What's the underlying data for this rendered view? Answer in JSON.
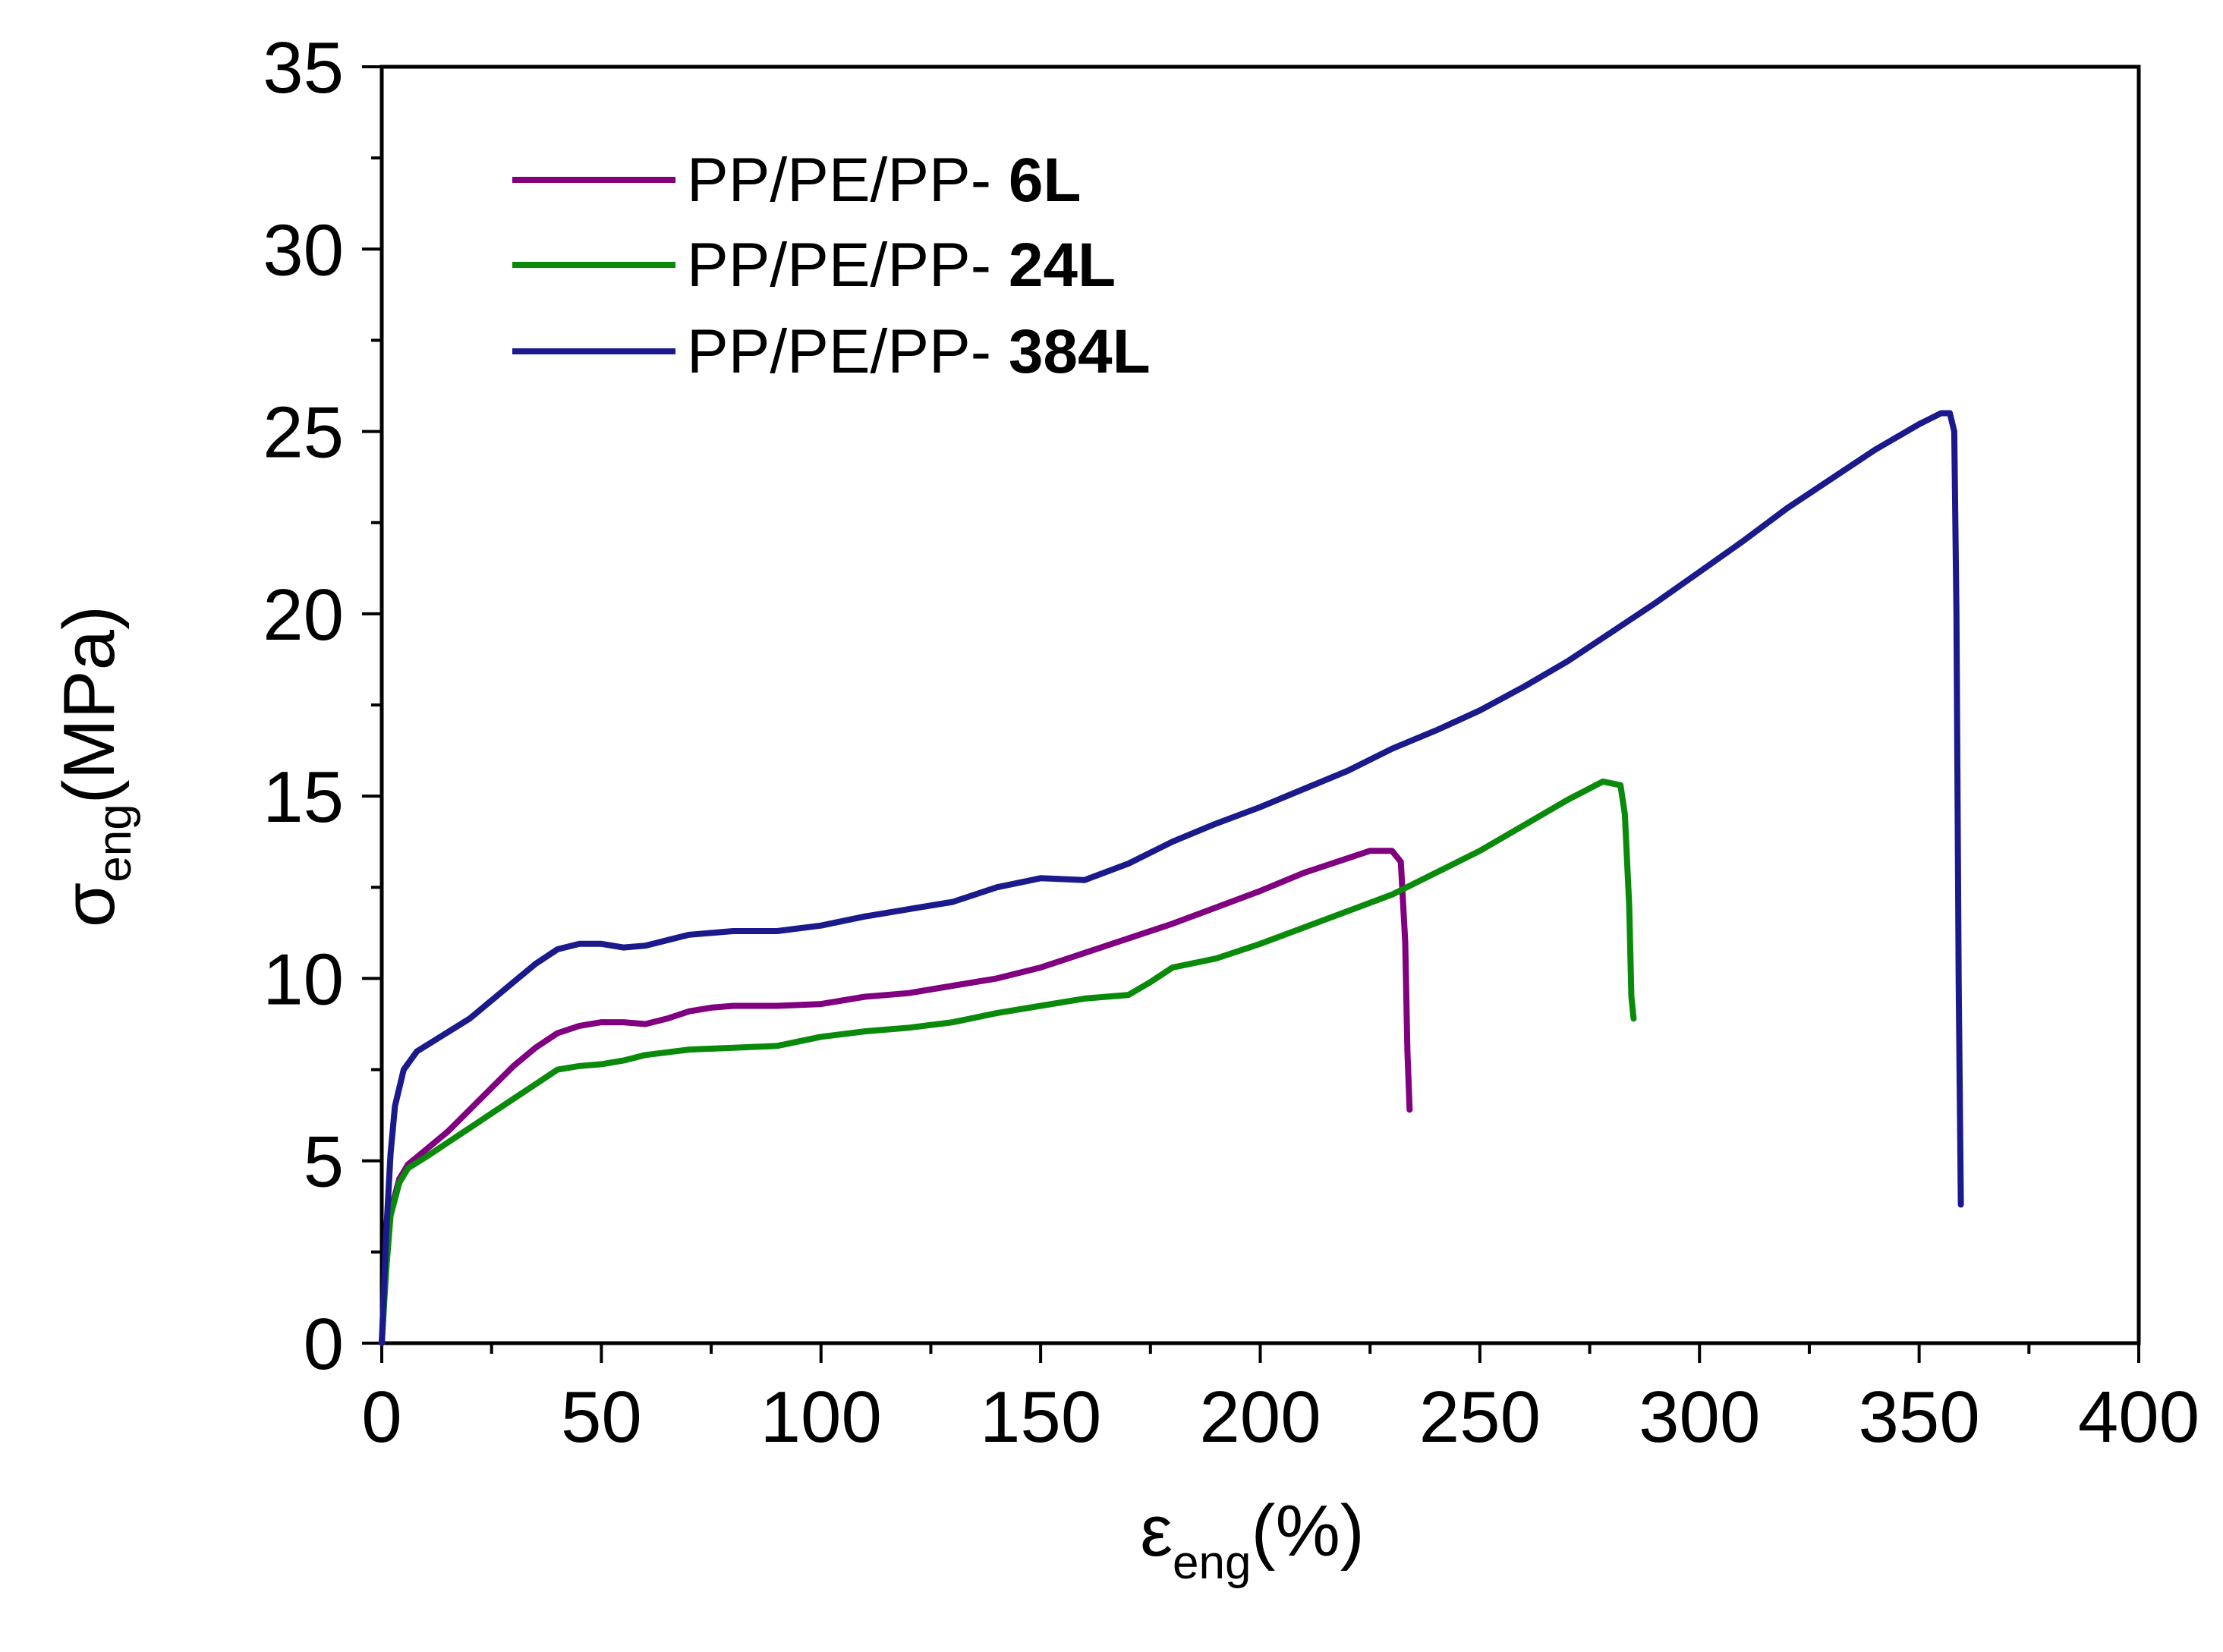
{
  "chart_data": {
    "type": "line",
    "title": "",
    "xlabel": {
      "symbol": "ε",
      "subscript": "eng",
      "unit": "(%)"
    },
    "ylabel": {
      "symbol": "σ",
      "subscript": "eng",
      "unit": "(MPa)"
    },
    "xlim": [
      0,
      400
    ],
    "ylim": [
      0,
      35
    ],
    "xticks": [
      0,
      50,
      100,
      150,
      200,
      250,
      300,
      350,
      400
    ],
    "yticks": [
      0,
      5,
      10,
      15,
      20,
      25,
      30,
      35
    ],
    "xminor_step": 25,
    "yminor_step": 2.5,
    "grid": false,
    "legend_position": "top-left",
    "series": [
      {
        "name_prefix": "PP/PE/PP- ",
        "name_suffix": "6L",
        "color": "#800080",
        "points": [
          [
            0,
            0
          ],
          [
            1,
            2.2
          ],
          [
            2,
            3.6
          ],
          [
            4,
            4.5
          ],
          [
            6,
            4.9
          ],
          [
            10,
            5.3
          ],
          [
            15,
            5.8
          ],
          [
            20,
            6.4
          ],
          [
            25,
            7.0
          ],
          [
            30,
            7.6
          ],
          [
            35,
            8.1
          ],
          [
            40,
            8.5
          ],
          [
            45,
            8.7
          ],
          [
            50,
            8.8
          ],
          [
            55,
            8.8
          ],
          [
            60,
            8.75
          ],
          [
            65,
            8.9
          ],
          [
            70,
            9.1
          ],
          [
            75,
            9.2
          ],
          [
            80,
            9.25
          ],
          [
            90,
            9.25
          ],
          [
            100,
            9.3
          ],
          [
            110,
            9.5
          ],
          [
            120,
            9.6
          ],
          [
            130,
            9.8
          ],
          [
            140,
            10.0
          ],
          [
            150,
            10.3
          ],
          [
            160,
            10.7
          ],
          [
            170,
            11.1
          ],
          [
            180,
            11.5
          ],
          [
            190,
            11.95
          ],
          [
            200,
            12.4
          ],
          [
            210,
            12.9
          ],
          [
            220,
            13.3
          ],
          [
            225,
            13.5
          ],
          [
            230,
            13.5
          ],
          [
            232,
            13.2
          ],
          [
            233,
            11.0
          ],
          [
            233.5,
            8.0
          ],
          [
            234,
            6.4
          ]
        ]
      },
      {
        "name_prefix": "PP/PE/PP- ",
        "name_suffix": "24L",
        "color": "#0a8a0a",
        "points": [
          [
            0,
            0
          ],
          [
            1,
            2.0
          ],
          [
            2,
            3.5
          ],
          [
            4,
            4.4
          ],
          [
            6,
            4.8
          ],
          [
            10,
            5.1
          ],
          [
            15,
            5.5
          ],
          [
            20,
            5.9
          ],
          [
            25,
            6.3
          ],
          [
            30,
            6.7
          ],
          [
            35,
            7.1
          ],
          [
            40,
            7.5
          ],
          [
            45,
            7.6
          ],
          [
            50,
            7.65
          ],
          [
            55,
            7.75
          ],
          [
            60,
            7.9
          ],
          [
            70,
            8.05
          ],
          [
            80,
            8.1
          ],
          [
            90,
            8.15
          ],
          [
            100,
            8.4
          ],
          [
            110,
            8.55
          ],
          [
            120,
            8.65
          ],
          [
            130,
            8.8
          ],
          [
            140,
            9.05
          ],
          [
            150,
            9.25
          ],
          [
            160,
            9.45
          ],
          [
            165,
            9.5
          ],
          [
            170,
            9.55
          ],
          [
            175,
            9.9
          ],
          [
            180,
            10.3
          ],
          [
            190,
            10.55
          ],
          [
            200,
            10.95
          ],
          [
            210,
            11.4
          ],
          [
            220,
            11.85
          ],
          [
            230,
            12.3
          ],
          [
            240,
            12.9
          ],
          [
            250,
            13.5
          ],
          [
            260,
            14.2
          ],
          [
            270,
            14.9
          ],
          [
            278,
            15.4
          ],
          [
            282,
            15.3
          ],
          [
            283,
            14.5
          ],
          [
            284,
            12.0
          ],
          [
            284.5,
            9.5
          ],
          [
            285,
            8.9
          ]
        ]
      },
      {
        "name_prefix": "PP/PE/PP- ",
        "name_suffix": "384L",
        "color": "#1a1a8c",
        "points": [
          [
            0,
            0
          ],
          [
            1,
            3.0
          ],
          [
            2,
            5.2
          ],
          [
            3,
            6.5
          ],
          [
            5,
            7.5
          ],
          [
            8,
            8.0
          ],
          [
            12,
            8.3
          ],
          [
            20,
            8.9
          ],
          [
            25,
            9.4
          ],
          [
            30,
            9.9
          ],
          [
            35,
            10.4
          ],
          [
            40,
            10.8
          ],
          [
            45,
            10.95
          ],
          [
            50,
            10.95
          ],
          [
            55,
            10.85
          ],
          [
            60,
            10.9
          ],
          [
            70,
            11.2
          ],
          [
            80,
            11.3
          ],
          [
            90,
            11.3
          ],
          [
            100,
            11.45
          ],
          [
            110,
            11.7
          ],
          [
            120,
            11.9
          ],
          [
            130,
            12.1
          ],
          [
            140,
            12.5
          ],
          [
            150,
            12.75
          ],
          [
            160,
            12.7
          ],
          [
            170,
            13.15
          ],
          [
            180,
            13.75
          ],
          [
            190,
            14.25
          ],
          [
            200,
            14.7
          ],
          [
            210,
            15.2
          ],
          [
            220,
            15.7
          ],
          [
            230,
            16.3
          ],
          [
            240,
            16.8
          ],
          [
            250,
            17.35
          ],
          [
            260,
            18.0
          ],
          [
            270,
            18.7
          ],
          [
            280,
            19.5
          ],
          [
            290,
            20.3
          ],
          [
            300,
            21.15
          ],
          [
            310,
            22.0
          ],
          [
            320,
            22.9
          ],
          [
            330,
            23.7
          ],
          [
            340,
            24.5
          ],
          [
            350,
            25.2
          ],
          [
            355,
            25.5
          ],
          [
            357,
            25.5
          ],
          [
            358,
            25.0
          ],
          [
            358.5,
            20.0
          ],
          [
            359,
            10.0
          ],
          [
            359.5,
            3.8
          ]
        ]
      }
    ]
  }
}
